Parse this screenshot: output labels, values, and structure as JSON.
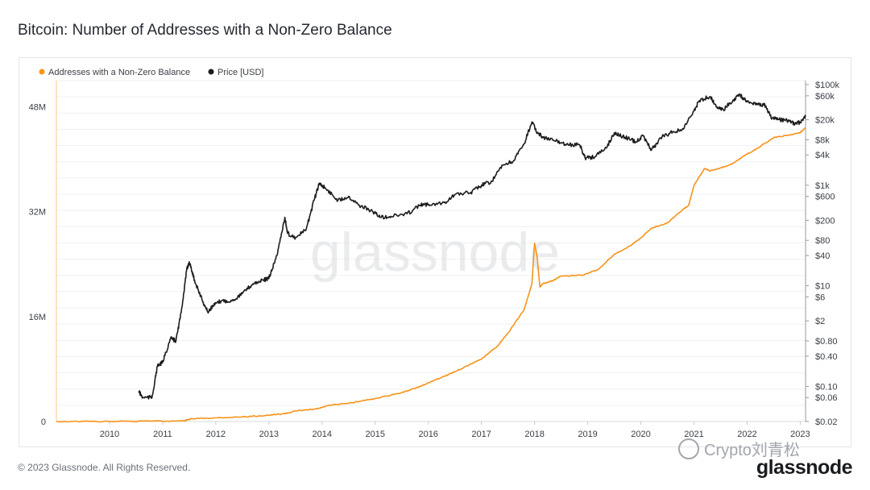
{
  "title": "Bitcoin: Number of Addresses with a Non-Zero Balance",
  "footer": "© 2023 Glassnode. All Rights Reserved.",
  "brand": "glassnode",
  "watermark_text": "glassnode",
  "wechat_tag": "Crypto刘青松",
  "chart_data": {
    "type": "line",
    "legend_placement": "top-left",
    "grid": true,
    "x": {
      "min": 2009.0,
      "max": 2023.1,
      "ticks": [
        "2010",
        "2011",
        "2012",
        "2013",
        "2014",
        "2015",
        "2016",
        "2017",
        "2018",
        "2019",
        "2020",
        "2021",
        "2022",
        "2023"
      ]
    },
    "y_left": {
      "min": 0,
      "max": 52000000,
      "ticks": [
        {
          "label": "0",
          "value": 0
        },
        {
          "label": "16M",
          "value": 16000000
        },
        {
          "label": "32M",
          "value": 32000000
        },
        {
          "label": "48M",
          "value": 48000000
        }
      ]
    },
    "y_right": {
      "scale": "log",
      "min": 0.02,
      "max": 100000,
      "ticks": [
        {
          "label": "$100k",
          "value": 100000
        },
        {
          "label": "$60k",
          "value": 60000
        },
        {
          "label": "$20k",
          "value": 20000
        },
        {
          "label": "$8k",
          "value": 8000
        },
        {
          "label": "$4k",
          "value": 4000
        },
        {
          "label": "$1k",
          "value": 1000
        },
        {
          "label": "$600",
          "value": 600
        },
        {
          "label": "$200",
          "value": 200
        },
        {
          "label": "$80",
          "value": 80
        },
        {
          "label": "$40",
          "value": 40
        },
        {
          "label": "$10",
          "value": 10
        },
        {
          "label": "$6",
          "value": 6
        },
        {
          "label": "$2",
          "value": 2
        },
        {
          "label": "$0.80",
          "value": 0.8
        },
        {
          "label": "$0.40",
          "value": 0.4
        },
        {
          "label": "$0.10",
          "value": 0.1
        },
        {
          "label": "$0.06",
          "value": 0.06
        },
        {
          "label": "$0.02",
          "value": 0.02
        }
      ]
    },
    "series": [
      {
        "name": "Addresses with a Non-Zero Balance",
        "axis": "left",
        "color": "#f7931a",
        "points": [
          [
            2009.0,
            0
          ],
          [
            2010.0,
            10000
          ],
          [
            2011.0,
            50000
          ],
          [
            2011.4,
            100000
          ],
          [
            2011.55,
            420000
          ],
          [
            2012.0,
            550000
          ],
          [
            2012.5,
            700000
          ],
          [
            2013.0,
            950000
          ],
          [
            2013.3,
            1200000
          ],
          [
            2013.5,
            1600000
          ],
          [
            2013.9,
            1900000
          ],
          [
            2014.1,
            2400000
          ],
          [
            2014.5,
            2800000
          ],
          [
            2015.0,
            3500000
          ],
          [
            2015.5,
            4400000
          ],
          [
            2015.8,
            5200000
          ],
          [
            2016.0,
            5900000
          ],
          [
            2016.3,
            6900000
          ],
          [
            2016.5,
            7600000
          ],
          [
            2017.0,
            9500000
          ],
          [
            2017.3,
            11500000
          ],
          [
            2017.5,
            13500000
          ],
          [
            2017.8,
            17000000
          ],
          [
            2017.95,
            21000000
          ],
          [
            2018.0,
            27200000
          ],
          [
            2018.05,
            25000000
          ],
          [
            2018.1,
            20500000
          ],
          [
            2018.15,
            21000000
          ],
          [
            2018.35,
            21500000
          ],
          [
            2018.5,
            22200000
          ],
          [
            2018.9,
            22300000
          ],
          [
            2019.2,
            23200000
          ],
          [
            2019.5,
            25500000
          ],
          [
            2019.8,
            26800000
          ],
          [
            2020.0,
            28000000
          ],
          [
            2020.2,
            29500000
          ],
          [
            2020.5,
            30300000
          ],
          [
            2020.7,
            31700000
          ],
          [
            2020.9,
            33000000
          ],
          [
            2021.0,
            36000000
          ],
          [
            2021.2,
            38600000
          ],
          [
            2021.3,
            38200000
          ],
          [
            2021.5,
            38700000
          ],
          [
            2021.7,
            39200000
          ],
          [
            2021.9,
            40300000
          ],
          [
            2022.2,
            41700000
          ],
          [
            2022.5,
            43300000
          ],
          [
            2022.8,
            43700000
          ],
          [
            2023.0,
            44100000
          ],
          [
            2023.1,
            44800000
          ]
        ]
      },
      {
        "name": "Price [USD]",
        "axis": "right",
        "color": "#1c1c1c",
        "points": [
          [
            2010.55,
            0.08
          ],
          [
            2010.62,
            0.06
          ],
          [
            2010.8,
            0.06
          ],
          [
            2010.9,
            0.25
          ],
          [
            2011.0,
            0.3
          ],
          [
            2011.15,
            0.9
          ],
          [
            2011.25,
            0.8
          ],
          [
            2011.35,
            3
          ],
          [
            2011.45,
            20
          ],
          [
            2011.5,
            30
          ],
          [
            2011.6,
            13
          ],
          [
            2011.75,
            5
          ],
          [
            2011.85,
            3
          ],
          [
            2011.95,
            4
          ],
          [
            2012.1,
            5
          ],
          [
            2012.3,
            5
          ],
          [
            2012.5,
            7
          ],
          [
            2012.7,
            11
          ],
          [
            2012.9,
            13
          ],
          [
            2013.0,
            14
          ],
          [
            2013.15,
            40
          ],
          [
            2013.3,
            230
          ],
          [
            2013.35,
            110
          ],
          [
            2013.5,
            90
          ],
          [
            2013.7,
            130
          ],
          [
            2013.85,
            500
          ],
          [
            2013.95,
            1100
          ],
          [
            2014.1,
            800
          ],
          [
            2014.3,
            500
          ],
          [
            2014.5,
            600
          ],
          [
            2014.7,
            400
          ],
          [
            2014.95,
            300
          ],
          [
            2015.1,
            230
          ],
          [
            2015.3,
            240
          ],
          [
            2015.6,
            270
          ],
          [
            2015.85,
            400
          ],
          [
            2016.0,
            420
          ],
          [
            2016.3,
            450
          ],
          [
            2016.5,
            650
          ],
          [
            2016.8,
            720
          ],
          [
            2017.0,
            1000
          ],
          [
            2017.2,
            1200
          ],
          [
            2017.4,
            2500
          ],
          [
            2017.6,
            3000
          ],
          [
            2017.8,
            6500
          ],
          [
            2017.95,
            18000
          ],
          [
            2018.05,
            11000
          ],
          [
            2018.2,
            8500
          ],
          [
            2018.4,
            7500
          ],
          [
            2018.6,
            6500
          ],
          [
            2018.85,
            6300
          ],
          [
            2018.95,
            3500
          ],
          [
            2019.1,
            3600
          ],
          [
            2019.35,
            5500
          ],
          [
            2019.5,
            11000
          ],
          [
            2019.7,
            9000
          ],
          [
            2019.9,
            7300
          ],
          [
            2020.05,
            9500
          ],
          [
            2020.2,
            5000
          ],
          [
            2020.4,
            9200
          ],
          [
            2020.6,
            11500
          ],
          [
            2020.8,
            13000
          ],
          [
            2021.0,
            30000
          ],
          [
            2021.1,
            48000
          ],
          [
            2021.3,
            58000
          ],
          [
            2021.45,
            35000
          ],
          [
            2021.55,
            32000
          ],
          [
            2021.75,
            50000
          ],
          [
            2021.85,
            65000
          ],
          [
            2022.0,
            45000
          ],
          [
            2022.2,
            42000
          ],
          [
            2022.35,
            38000
          ],
          [
            2022.45,
            22000
          ],
          [
            2022.6,
            20000
          ],
          [
            2022.75,
            19500
          ],
          [
            2022.9,
            16500
          ],
          [
            2023.0,
            18000
          ],
          [
            2023.1,
            23000
          ]
        ]
      }
    ]
  }
}
